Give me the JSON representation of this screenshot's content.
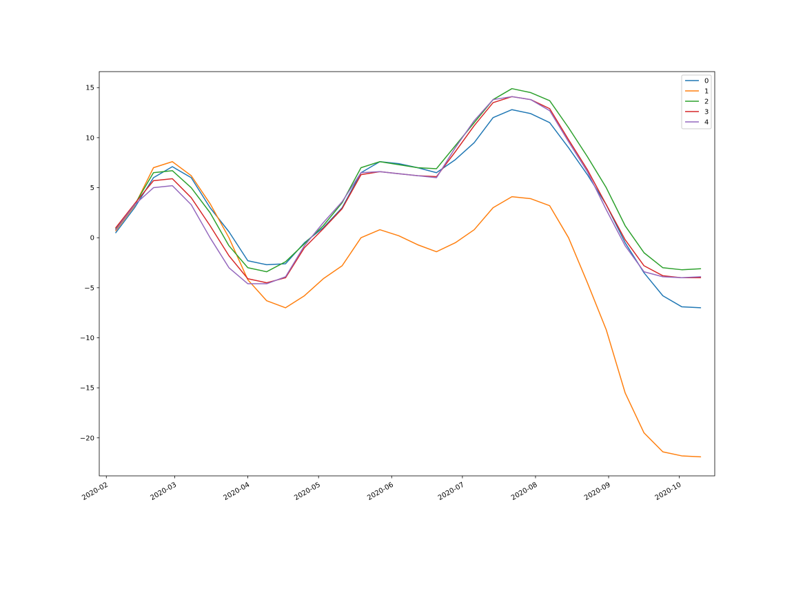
{
  "chart_data": {
    "type": "line",
    "title": "",
    "xlabel": "",
    "ylabel": "",
    "x_axis": {
      "type": "date",
      "range": [
        "2020-01-29",
        "2020-10-16"
      ],
      "ticks": [
        {
          "date": "2020-02-01",
          "label": "2020-02"
        },
        {
          "date": "2020-03-01",
          "label": "2020-03"
        },
        {
          "date": "2020-04-01",
          "label": "2020-04"
        },
        {
          "date": "2020-05-01",
          "label": "2020-05"
        },
        {
          "date": "2020-06-01",
          "label": "2020-06"
        },
        {
          "date": "2020-07-01",
          "label": "2020-07"
        },
        {
          "date": "2020-08-01",
          "label": "2020-08"
        },
        {
          "date": "2020-09-01",
          "label": "2020-09"
        },
        {
          "date": "2020-10-01",
          "label": "2020-10"
        }
      ]
    },
    "y_axis": {
      "range": [
        -23.8,
        16.6
      ],
      "ticks": [
        {
          "value": 15,
          "label": "15"
        },
        {
          "value": 10,
          "label": "10"
        },
        {
          "value": 5,
          "label": "5"
        },
        {
          "value": 0,
          "label": "0"
        },
        {
          "value": -5,
          "label": "−5"
        },
        {
          "value": -10,
          "label": "−10"
        },
        {
          "value": -15,
          "label": "−15"
        },
        {
          "value": -20,
          "label": "−20"
        }
      ]
    },
    "grid": false,
    "legend": {
      "position": "top-right"
    },
    "x": [
      "2020-02-05",
      "2020-02-13",
      "2020-02-21",
      "2020-02-29",
      "2020-03-08",
      "2020-03-16",
      "2020-03-24",
      "2020-04-01",
      "2020-04-09",
      "2020-04-17",
      "2020-04-25",
      "2020-05-03",
      "2020-05-11",
      "2020-05-19",
      "2020-05-27",
      "2020-06-04",
      "2020-06-12",
      "2020-06-20",
      "2020-06-28",
      "2020-07-06",
      "2020-07-14",
      "2020-07-22",
      "2020-07-30",
      "2020-08-07",
      "2020-08-15",
      "2020-08-23",
      "2020-08-31",
      "2020-09-08",
      "2020-09-16",
      "2020-09-24",
      "2020-10-02",
      "2020-10-10"
    ],
    "series": [
      {
        "name": "0",
        "color": "#1f77b4",
        "values": [
          0.5,
          3.0,
          6.0,
          7.1,
          6.0,
          3.0,
          0.6,
          -2.3,
          -2.7,
          -2.6,
          -0.5,
          1.0,
          3.0,
          6.5,
          7.6,
          7.4,
          7.0,
          6.5,
          7.8,
          9.5,
          12.0,
          12.8,
          12.4,
          11.5,
          9.0,
          6.3,
          3.3,
          -0.5,
          -3.5,
          -5.8,
          -6.9,
          -7.0
        ]
      },
      {
        "name": "1",
        "color": "#ff7f0e",
        "values": [
          0.7,
          3.2,
          7.0,
          7.6,
          6.2,
          3.4,
          0.0,
          -4.2,
          -6.3,
          -7.0,
          -5.8,
          -4.1,
          -2.8,
          0.0,
          0.8,
          0.2,
          -0.7,
          -1.4,
          -0.5,
          0.8,
          3.0,
          4.1,
          3.9,
          3.2,
          0.0,
          -4.5,
          -9.2,
          -15.5,
          -19.5,
          -21.4,
          -21.8,
          -21.9
        ]
      },
      {
        "name": "2",
        "color": "#2ca02c",
        "values": [
          0.9,
          3.3,
          6.5,
          6.7,
          5.0,
          2.5,
          -0.8,
          -3.0,
          -3.4,
          -2.4,
          -0.6,
          1.2,
          3.5,
          7.0,
          7.6,
          7.3,
          7.0,
          6.9,
          9.2,
          11.5,
          13.8,
          14.9,
          14.5,
          13.7,
          11.0,
          8.1,
          5.0,
          1.2,
          -1.5,
          -3.0,
          -3.2,
          -3.1
        ]
      },
      {
        "name": "3",
        "color": "#d62728",
        "values": [
          1.0,
          3.4,
          5.7,
          5.9,
          4.0,
          1.2,
          -1.8,
          -4.1,
          -4.5,
          -4.0,
          -1.0,
          0.9,
          2.9,
          6.3,
          6.6,
          6.4,
          6.2,
          6.1,
          8.6,
          11.2,
          13.5,
          14.1,
          13.8,
          12.9,
          9.8,
          6.8,
          3.3,
          -0.2,
          -2.8,
          -3.8,
          -4.0,
          -4.0
        ]
      },
      {
        "name": "4",
        "color": "#9467bd",
        "values": [
          0.8,
          3.3,
          5.0,
          5.2,
          3.3,
          0.0,
          -3.0,
          -4.6,
          -4.6,
          -3.9,
          -0.8,
          1.5,
          3.6,
          6.5,
          6.6,
          6.4,
          6.2,
          6.0,
          9.0,
          11.7,
          13.8,
          14.1,
          13.8,
          12.7,
          9.6,
          6.6,
          2.8,
          -0.8,
          -3.4,
          -3.9,
          -4.0,
          -3.9
        ]
      }
    ]
  }
}
